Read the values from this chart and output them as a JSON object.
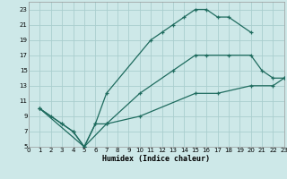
{
  "xlabel": "Humidex (Indice chaleur)",
  "xlim": [
    0,
    23
  ],
  "ylim": [
    5,
    24
  ],
  "yticks": [
    5,
    7,
    9,
    11,
    13,
    15,
    17,
    19,
    21,
    23
  ],
  "xticks": [
    0,
    1,
    2,
    3,
    4,
    5,
    6,
    7,
    8,
    9,
    10,
    11,
    12,
    13,
    14,
    15,
    16,
    17,
    18,
    19,
    20,
    21,
    22,
    23
  ],
  "bg_color": "#cde8e8",
  "grid_color": "#aacece",
  "line_color": "#1e6b5e",
  "line1_x": [
    1,
    2,
    3,
    4,
    5,
    6,
    7,
    11,
    12,
    13,
    14,
    15,
    16,
    17,
    18,
    20
  ],
  "line1_y": [
    10,
    9,
    8,
    7,
    5,
    8,
    12,
    19,
    20,
    21,
    22,
    23,
    23,
    22,
    22,
    20
  ],
  "line2_x": [
    1,
    3,
    4,
    5,
    6,
    7,
    10,
    13,
    15,
    16,
    18,
    20,
    21,
    22,
    23
  ],
  "line2_y": [
    10,
    8,
    7,
    5,
    8,
    8,
    12,
    15,
    17,
    17,
    17,
    17,
    15,
    14,
    14
  ],
  "line3_x": [
    1,
    5,
    7,
    10,
    15,
    17,
    20,
    22,
    23
  ],
  "line3_y": [
    10,
    5,
    8,
    9,
    12,
    12,
    13,
    13,
    14
  ]
}
